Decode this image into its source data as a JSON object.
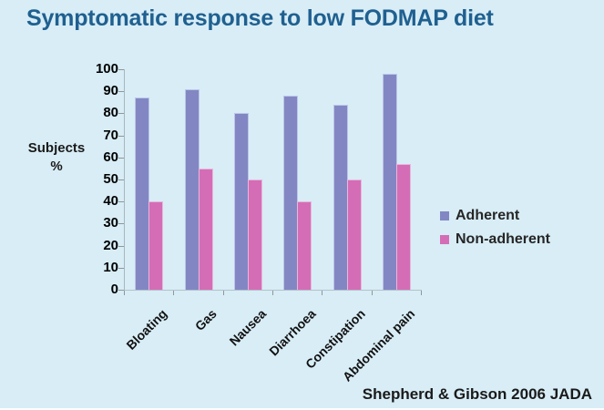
{
  "slide": {
    "title": "Symptomatic response to low FODMAP diet",
    "citation": "Shepherd & Gibson 2006 JADA"
  },
  "y_axis_title": {
    "line1": "Subjects",
    "line2": "%"
  },
  "colors": {
    "background": "#d8edf6",
    "title_text": "#1f6090",
    "adherent_fill": "#8287c3",
    "adherent_border": "#bcc6e8",
    "non_adherent_fill": "#d46db6",
    "non_adherent_border": "#e9b7dc",
    "axis_line": "#a9b6bd",
    "tick_mark": "#8e979c",
    "label_text": "#1a1a1a"
  },
  "chart_data": {
    "type": "bar",
    "title": "Symptomatic response to low FODMAP diet",
    "categories": [
      "Bloating",
      "Gas",
      "Nausea",
      "Diarrhoea",
      "Constipation",
      "Abdominal pain"
    ],
    "series": [
      {
        "name": "Adherent",
        "values": [
          87,
          91,
          80,
          88,
          84,
          98
        ],
        "color": "#8287c3",
        "border_color": "#bcc6e8"
      },
      {
        "name": "Non-adherent",
        "values": [
          40,
          55,
          50,
          40,
          50,
          57
        ],
        "color": "#d46db6",
        "border_color": "#e9b7dc"
      }
    ],
    "xlabel": "",
    "ylabel": "Subjects %",
    "ylim": [
      0,
      100
    ],
    "ytick_step": 10,
    "grid": false,
    "legend_position": "middle-right",
    "x_tick_label_rotation_deg": 45,
    "source": "Shepherd & Gibson 2006 JADA"
  }
}
